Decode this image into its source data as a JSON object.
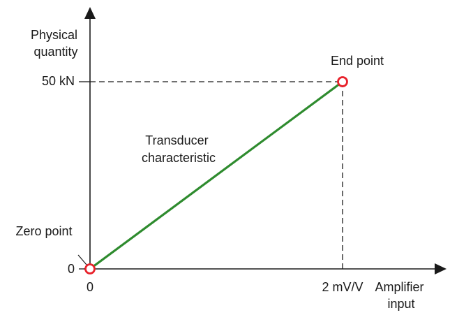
{
  "chart_data": {
    "type": "line",
    "title": "",
    "xlabel": [
      "Amplifier",
      "input"
    ],
    "ylabel": [
      "Physical",
      "quantity"
    ],
    "x_ticks": [
      "0",
      "2 mV/V"
    ],
    "y_ticks": [
      "0",
      "50 kN"
    ],
    "xlim": [
      0,
      2
    ],
    "ylim": [
      0,
      50
    ],
    "series": [
      {
        "x": [
          0,
          2
        ],
        "y": [
          0,
          50
        ],
        "color": "#2e8b2e"
      }
    ],
    "points": [
      {
        "label": "Zero point",
        "x": 0,
        "y": 0
      },
      {
        "label": "End point",
        "x": 2,
        "y": 50
      }
    ],
    "annotations": [
      {
        "text": [
          "Transducer",
          "characteristic"
        ]
      }
    ],
    "colors": {
      "line": "#2e8b2e",
      "marker": "#e8212a",
      "axis": "#1a1a1a"
    }
  }
}
